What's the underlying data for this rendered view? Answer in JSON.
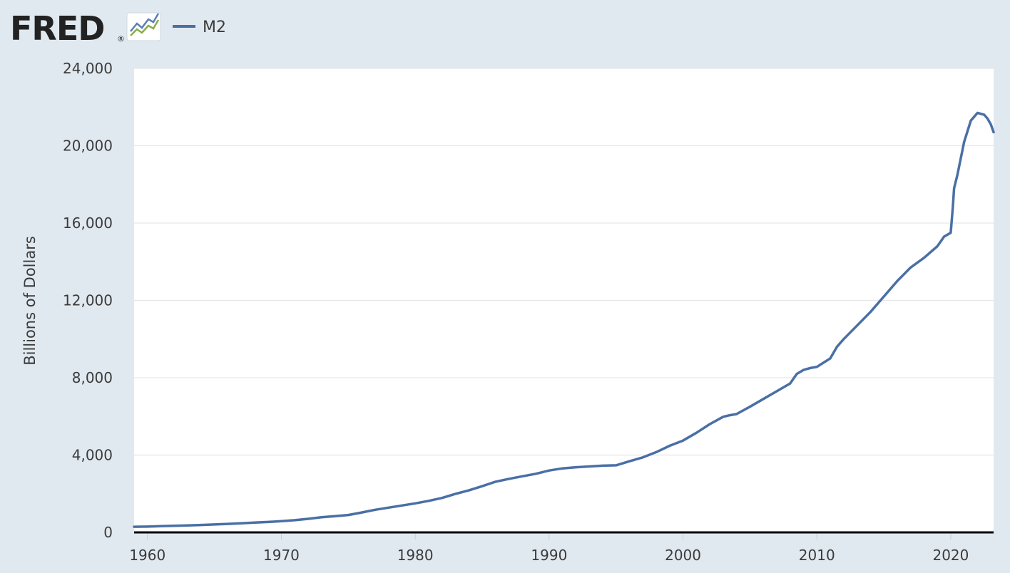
{
  "header": {
    "logo_text": "FRED",
    "logo_mark": "®"
  },
  "legend": {
    "label": "M2"
  },
  "colors": {
    "background": "#e1e9f0",
    "plot_background": "#ffffff",
    "series": "#4a6fa5",
    "grid": "#e6e6e6",
    "baseline": "#000000",
    "logo_green": "#8bab4b",
    "logo_blue": "#5b7fb5"
  },
  "chart_data": {
    "type": "line",
    "title": "",
    "xlabel": "",
    "ylabel": "Billions of Dollars",
    "xlim": [
      1959.0,
      2023.2
    ],
    "ylim": [
      0,
      24000
    ],
    "x_ticks": [
      {
        "value": 1960,
        "label": "1960"
      },
      {
        "value": 1970,
        "label": "1970"
      },
      {
        "value": 1980,
        "label": "1980"
      },
      {
        "value": 1990,
        "label": "1990"
      },
      {
        "value": 2000,
        "label": "2000"
      },
      {
        "value": 2010,
        "label": "2010"
      },
      {
        "value": 2020,
        "label": "2020"
      }
    ],
    "y_ticks": [
      {
        "value": 0,
        "label": "0"
      },
      {
        "value": 4000,
        "label": "4,000"
      },
      {
        "value": 8000,
        "label": "8,000"
      },
      {
        "value": 12000,
        "label": "12,000"
      },
      {
        "value": 16000,
        "label": "16,000"
      },
      {
        "value": 20000,
        "label": "20,000"
      },
      {
        "value": 24000,
        "label": "24,000"
      }
    ],
    "grid": "horizontal",
    "legend_position": "top-left",
    "series": [
      {
        "name": "M2",
        "x": [
          1959.0,
          1960.0,
          1961.0,
          1962.0,
          1963.0,
          1964.0,
          1965.0,
          1966.0,
          1967.0,
          1968.0,
          1969.0,
          1970.0,
          1971.0,
          1972.0,
          1973.0,
          1974.0,
          1975.0,
          1976.0,
          1977.0,
          1978.0,
          1979.0,
          1980.0,
          1981.0,
          1982.0,
          1983.0,
          1984.0,
          1985.0,
          1986.0,
          1987.0,
          1988.0,
          1989.0,
          1990.0,
          1991.0,
          1992.0,
          1993.0,
          1994.0,
          1995.0,
          1996.0,
          1997.0,
          1998.0,
          1999.0,
          2000.0,
          2001.0,
          2002.0,
          2003.0,
          2003.5,
          2004.0,
          2005.0,
          2006.0,
          2007.0,
          2008.0,
          2008.5,
          2009.0,
          2009.5,
          2010.0,
          2011.0,
          2011.5,
          2012.0,
          2013.0,
          2014.0,
          2015.0,
          2016.0,
          2017.0,
          2018.0,
          2019.0,
          2019.5,
          2020.0,
          2020.15,
          2020.25,
          2020.5,
          2021.0,
          2021.5,
          2022.0,
          2022.25,
          2022.5,
          2022.75,
          2023.0,
          2023.2
        ],
        "values": [
          290,
          300,
          320,
          340,
          360,
          385,
          410,
          440,
          470,
          505,
          540,
          580,
          630,
          700,
          780,
          840,
          900,
          1030,
          1170,
          1280,
          1390,
          1500,
          1630,
          1780,
          1990,
          2170,
          2390,
          2620,
          2770,
          2900,
          3030,
          3200,
          3310,
          3370,
          3410,
          3450,
          3470,
          3680,
          3880,
          4150,
          4480,
          4750,
          5150,
          5600,
          5980,
          6060,
          6120,
          6500,
          6900,
          7300,
          7700,
          8200,
          8400,
          8500,
          8560,
          9000,
          9600,
          10000,
          10700,
          11400,
          12200,
          13000,
          13700,
          14200,
          14800,
          15300,
          15500,
          16800,
          17800,
          18500,
          20200,
          21300,
          21700,
          21650,
          21600,
          21400,
          21100,
          20700
        ]
      }
    ]
  }
}
